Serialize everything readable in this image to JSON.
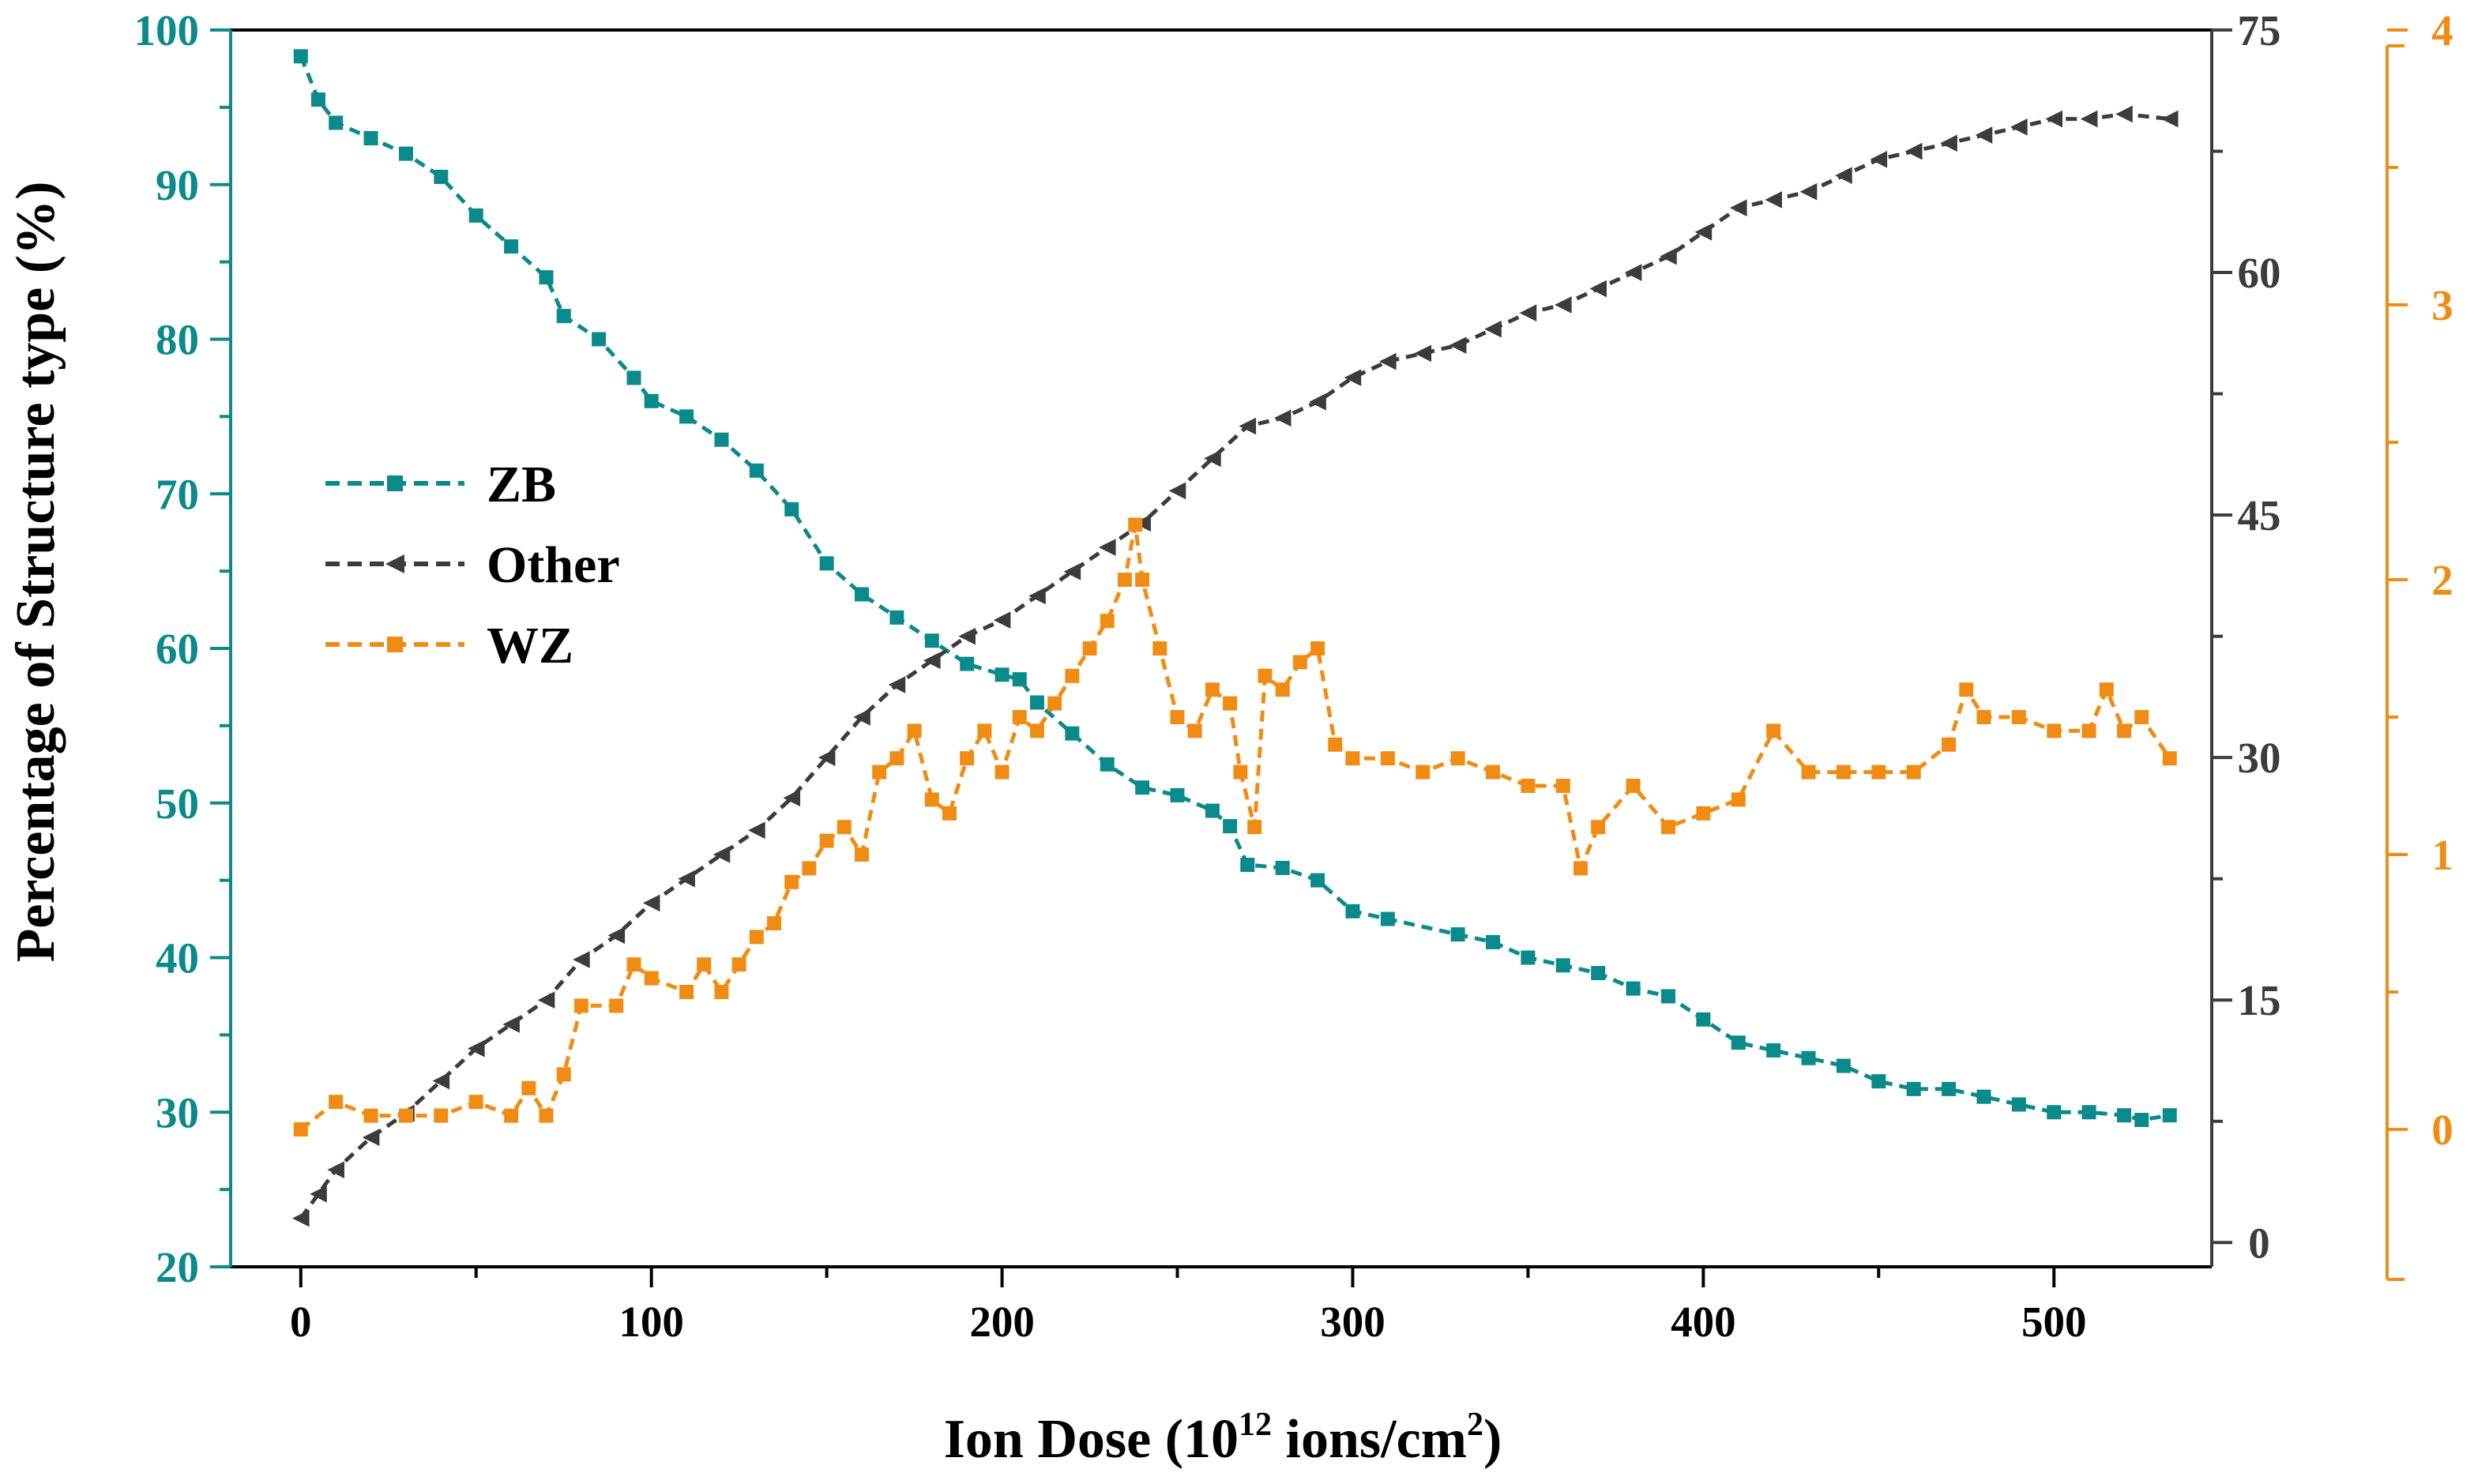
{
  "chart_data": {
    "type": "line",
    "title": "",
    "xlabel": {
      "main": "Ion Dose (10",
      "sup1": "12",
      "mid": " ions/cm",
      "sup2": "2",
      "end": ")"
    },
    "ylabel_left": "Percentage of Structure type (%)",
    "xlim": [
      -20,
      545
    ],
    "xticks": [
      0,
      100,
      200,
      300,
      400,
      500
    ],
    "axes": [
      {
        "id": "left",
        "color": "#0a8a8a",
        "ylim": [
          20,
          100
        ],
        "ticks": [
          20,
          30,
          40,
          50,
          60,
          70,
          80,
          90,
          100
        ]
      },
      {
        "id": "right1",
        "color": "#3c3c3c",
        "ylim": [
          -1.5,
          75
        ],
        "ticks": [
          0,
          15,
          30,
          45,
          60,
          75
        ]
      },
      {
        "id": "right2",
        "color": "#f08c14",
        "ylim": [
          -0.5,
          4
        ],
        "ticks": [
          0,
          1,
          2,
          3,
          4
        ]
      }
    ],
    "legend_position": "middle-left",
    "series": [
      {
        "name": "ZB",
        "axis": "left",
        "color": "#0a8a8a",
        "marker": "square",
        "points": [
          [
            0,
            98.3
          ],
          [
            5,
            95.5
          ],
          [
            10,
            94.0
          ],
          [
            20,
            93.0
          ],
          [
            30,
            92.0
          ],
          [
            40,
            90.5
          ],
          [
            50,
            88.0
          ],
          [
            60,
            86.0
          ],
          [
            70,
            84.0
          ],
          [
            75,
            81.5
          ],
          [
            85,
            80.0
          ],
          [
            95,
            77.5
          ],
          [
            100,
            76.0
          ],
          [
            110,
            75.0
          ],
          [
            120,
            73.5
          ],
          [
            130,
            71.5
          ],
          [
            140,
            69.0
          ],
          [
            150,
            65.5
          ],
          [
            160,
            63.5
          ],
          [
            170,
            62.0
          ],
          [
            180,
            60.5
          ],
          [
            190,
            59.0
          ],
          [
            200,
            58.3
          ],
          [
            205,
            58.0
          ],
          [
            210,
            56.5
          ],
          [
            220,
            54.5
          ],
          [
            230,
            52.5
          ],
          [
            240,
            51.0
          ],
          [
            250,
            50.5
          ],
          [
            260,
            49.5
          ],
          [
            265,
            48.5
          ],
          [
            270,
            46.0
          ],
          [
            280,
            45.8
          ],
          [
            290,
            45.0
          ],
          [
            300,
            43.0
          ],
          [
            310,
            42.5
          ],
          [
            330,
            41.5
          ],
          [
            340,
            41.0
          ],
          [
            350,
            40.0
          ],
          [
            360,
            39.5
          ],
          [
            370,
            39.0
          ],
          [
            380,
            38.0
          ],
          [
            390,
            37.5
          ],
          [
            400,
            36.0
          ],
          [
            410,
            34.5
          ],
          [
            420,
            34.0
          ],
          [
            430,
            33.5
          ],
          [
            440,
            33.0
          ],
          [
            450,
            32.0
          ],
          [
            460,
            31.5
          ],
          [
            470,
            31.5
          ],
          [
            480,
            31.0
          ],
          [
            490,
            30.5
          ],
          [
            500,
            30.0
          ],
          [
            510,
            30.0
          ],
          [
            520,
            29.8
          ],
          [
            525,
            29.5
          ],
          [
            533,
            29.8
          ]
        ]
      },
      {
        "name": "Other",
        "axis": "right1",
        "color": "#3c3c3c",
        "marker": "triangle-left",
        "points": [
          [
            0,
            1.5
          ],
          [
            5,
            3.0
          ],
          [
            10,
            4.5
          ],
          [
            20,
            6.5
          ],
          [
            30,
            8.0
          ],
          [
            40,
            10.0
          ],
          [
            50,
            12.0
          ],
          [
            60,
            13.5
          ],
          [
            70,
            15.0
          ],
          [
            80,
            17.5
          ],
          [
            90,
            19.0
          ],
          [
            100,
            21.0
          ],
          [
            110,
            22.5
          ],
          [
            120,
            24.0
          ],
          [
            130,
            25.5
          ],
          [
            140,
            27.5
          ],
          [
            150,
            30.0
          ],
          [
            160,
            32.5
          ],
          [
            170,
            34.5
          ],
          [
            180,
            36.0
          ],
          [
            190,
            37.5
          ],
          [
            200,
            38.5
          ],
          [
            210,
            40.0
          ],
          [
            220,
            41.5
          ],
          [
            230,
            43.0
          ],
          [
            240,
            44.5
          ],
          [
            250,
            46.5
          ],
          [
            260,
            48.5
          ],
          [
            270,
            50.5
          ],
          [
            280,
            51.0
          ],
          [
            290,
            52.0
          ],
          [
            300,
            53.5
          ],
          [
            310,
            54.5
          ],
          [
            320,
            55.0
          ],
          [
            330,
            55.5
          ],
          [
            340,
            56.5
          ],
          [
            350,
            57.5
          ],
          [
            360,
            58.0
          ],
          [
            370,
            59.0
          ],
          [
            380,
            60.0
          ],
          [
            390,
            61.0
          ],
          [
            400,
            62.5
          ],
          [
            410,
            64.0
          ],
          [
            420,
            64.5
          ],
          [
            430,
            65.0
          ],
          [
            440,
            66.0
          ],
          [
            450,
            67.0
          ],
          [
            460,
            67.5
          ],
          [
            470,
            68.0
          ],
          [
            480,
            68.5
          ],
          [
            490,
            69.0
          ],
          [
            500,
            69.5
          ],
          [
            510,
            69.5
          ],
          [
            520,
            69.8
          ],
          [
            533,
            69.5
          ]
        ]
      },
      {
        "name": "WZ",
        "axis": "right2",
        "color": "#f08c14",
        "marker": "square",
        "points": [
          [
            0,
            0.0
          ],
          [
            10,
            0.1
          ],
          [
            20,
            0.05
          ],
          [
            30,
            0.05
          ],
          [
            40,
            0.05
          ],
          [
            50,
            0.1
          ],
          [
            60,
            0.05
          ],
          [
            65,
            0.15
          ],
          [
            70,
            0.05
          ],
          [
            75,
            0.2
          ],
          [
            80,
            0.45
          ],
          [
            90,
            0.45
          ],
          [
            95,
            0.6
          ],
          [
            100,
            0.55
          ],
          [
            110,
            0.5
          ],
          [
            115,
            0.6
          ],
          [
            120,
            0.5
          ],
          [
            125,
            0.6
          ],
          [
            130,
            0.7
          ],
          [
            135,
            0.75
          ],
          [
            140,
            0.9
          ],
          [
            145,
            0.95
          ],
          [
            150,
            1.05
          ],
          [
            155,
            1.1
          ],
          [
            160,
            1.0
          ],
          [
            165,
            1.3
          ],
          [
            170,
            1.35
          ],
          [
            175,
            1.45
          ],
          [
            180,
            1.2
          ],
          [
            185,
            1.15
          ],
          [
            190,
            1.35
          ],
          [
            195,
            1.45
          ],
          [
            200,
            1.3
          ],
          [
            205,
            1.5
          ],
          [
            210,
            1.45
          ],
          [
            215,
            1.55
          ],
          [
            220,
            1.65
          ],
          [
            225,
            1.75
          ],
          [
            230,
            1.85
          ],
          [
            235,
            2.0
          ],
          [
            238,
            2.2
          ],
          [
            240,
            2.0
          ],
          [
            245,
            1.75
          ],
          [
            250,
            1.5
          ],
          [
            255,
            1.45
          ],
          [
            260,
            1.6
          ],
          [
            265,
            1.55
          ],
          [
            268,
            1.3
          ],
          [
            272,
            1.1
          ],
          [
            275,
            1.65
          ],
          [
            280,
            1.6
          ],
          [
            285,
            1.7
          ],
          [
            290,
            1.75
          ],
          [
            295,
            1.4
          ],
          [
            300,
            1.35
          ],
          [
            310,
            1.35
          ],
          [
            320,
            1.3
          ],
          [
            330,
            1.35
          ],
          [
            340,
            1.3
          ],
          [
            350,
            1.25
          ],
          [
            360,
            1.25
          ],
          [
            365,
            0.95
          ],
          [
            370,
            1.1
          ],
          [
            380,
            1.25
          ],
          [
            390,
            1.1
          ],
          [
            400,
            1.15
          ],
          [
            410,
            1.2
          ],
          [
            420,
            1.45
          ],
          [
            430,
            1.3
          ],
          [
            440,
            1.3
          ],
          [
            450,
            1.3
          ],
          [
            460,
            1.3
          ],
          [
            470,
            1.4
          ],
          [
            475,
            1.6
          ],
          [
            480,
            1.5
          ],
          [
            490,
            1.5
          ],
          [
            500,
            1.45
          ],
          [
            510,
            1.45
          ],
          [
            515,
            1.6
          ],
          [
            520,
            1.45
          ],
          [
            525,
            1.5
          ],
          [
            533,
            1.35
          ]
        ]
      }
    ]
  }
}
